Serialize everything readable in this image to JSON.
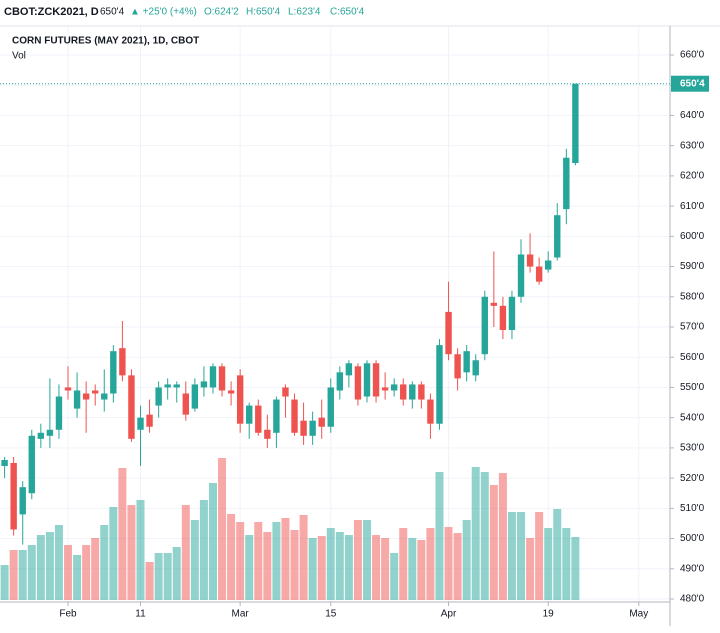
{
  "chart_data": {
    "type": "candlestick",
    "header": {
      "symbol": "CBOT:ZCK2021, D",
      "last": "650'4",
      "change": "▲ +25'0 (+4%)",
      "open": "O:624'2",
      "high": "H:650'4",
      "low": "L:623'4",
      "close": "C:650'4"
    },
    "title": "CORN FUTURES (MAY 2021), 1D, CBOT",
    "volume_label": "Vol",
    "up_color": "#26a69a",
    "down_color": "#ef5350",
    "open": [
      524,
      525,
      508,
      515,
      533,
      534,
      536,
      550,
      543,
      548,
      549,
      546,
      548,
      563,
      554,
      536,
      541,
      544,
      550,
      550,
      548,
      543,
      550,
      550,
      557,
      549,
      554,
      538,
      544,
      536,
      535,
      550,
      546,
      539,
      534,
      540,
      537,
      549,
      554,
      557,
      547,
      558,
      550,
      549,
      551,
      546,
      551,
      546,
      538,
      575,
      561,
      555,
      554,
      561,
      578,
      577,
      569,
      580,
      594,
      590,
      589,
      593,
      609,
      624.25
    ],
    "high": [
      527,
      527,
      519,
      536,
      538,
      553,
      551,
      557,
      555,
      552,
      551,
      556,
      564,
      572,
      556,
      544,
      546,
      552,
      553,
      552,
      552,
      553,
      557,
      558,
      558,
      552,
      556,
      545,
      546,
      541,
      547,
      551,
      548,
      545,
      542,
      546,
      553,
      557,
      559,
      558,
      559,
      559,
      555,
      553,
      553,
      552,
      552,
      548,
      566,
      585,
      563,
      564,
      561,
      582,
      595,
      580,
      582,
      599,
      601,
      593,
      595,
      611,
      629,
      650.5
    ],
    "low": [
      520,
      501,
      498,
      513,
      530,
      530,
      533,
      546,
      540,
      535,
      544,
      542,
      545,
      552,
      532,
      524,
      535,
      540,
      546,
      545,
      539,
      542,
      547,
      548,
      547,
      544,
      535,
      533,
      534,
      530,
      530,
      540,
      534,
      531,
      531,
      533,
      535,
      546,
      550,
      544,
      545,
      545,
      546,
      547,
      544,
      543,
      543,
      533,
      536,
      559,
      549,
      552,
      552,
      559,
      570,
      566,
      566,
      578,
      588,
      584,
      588,
      592,
      604,
      623.5
    ],
    "close": [
      526,
      503,
      517,
      534,
      535,
      536,
      547,
      549,
      549,
      546,
      548,
      548,
      562,
      554,
      533,
      540,
      537,
      550,
      551,
      551,
      541,
      551,
      552,
      557,
      549,
      548,
      538,
      544,
      535,
      533,
      546,
      547,
      535,
      534,
      539,
      537,
      550,
      555,
      558,
      546,
      558,
      547,
      549,
      551,
      546,
      551,
      546,
      538,
      564,
      561,
      553,
      562,
      559,
      580,
      577,
      569,
      580,
      594,
      590,
      585,
      592,
      607,
      626,
      650.5
    ],
    "volume": [
      35,
      50,
      50,
      55,
      65,
      68,
      75,
      55,
      45,
      55,
      62,
      75,
      93,
      132,
      95,
      100,
      38,
      47,
      47,
      53,
      95,
      80,
      100,
      117,
      142,
      86,
      78,
      65,
      78,
      68,
      78,
      82,
      70,
      85,
      62,
      64,
      72,
      68,
      65,
      80,
      80,
      65,
      62,
      47,
      72,
      62,
      60,
      72,
      128,
      73,
      67,
      80,
      133,
      128,
      115,
      127,
      88,
      88,
      62,
      88,
      72,
      91,
      72,
      63
    ],
    "xticks": [
      {
        "value": 7,
        "label": "Feb"
      },
      {
        "value": 15,
        "label": "11"
      },
      {
        "value": 26,
        "label": "Mar"
      },
      {
        "value": 36,
        "label": "15"
      },
      {
        "value": 49,
        "label": "Apr"
      },
      {
        "value": 60,
        "label": "19"
      },
      {
        "value": 70,
        "label": "May"
      }
    ],
    "ylim": [
      480,
      660
    ],
    "yticks": [
      {
        "value": 480,
        "label": "480'0"
      },
      {
        "value": 490,
        "label": "490'0"
      },
      {
        "value": 500,
        "label": "500'0"
      },
      {
        "value": 510,
        "label": "510'0"
      },
      {
        "value": 520,
        "label": "520'0"
      },
      {
        "value": 530,
        "label": "530'0"
      },
      {
        "value": 540,
        "label": "540'0"
      },
      {
        "value": 550,
        "label": "550'0"
      },
      {
        "value": 560,
        "label": "560'0"
      },
      {
        "value": 570,
        "label": "570'0"
      },
      {
        "value": 580,
        "label": "580'0"
      },
      {
        "value": 590,
        "label": "590'0"
      },
      {
        "value": 600,
        "label": "600'0"
      },
      {
        "value": 610,
        "label": "610'0"
      },
      {
        "value": 620,
        "label": "620'0"
      },
      {
        "value": 630,
        "label": "630'0"
      },
      {
        "value": 640,
        "label": "640'0"
      },
      {
        "value": 650,
        "label": "650'0"
      },
      {
        "value": 660,
        "label": "660'0"
      }
    ],
    "last_price": {
      "value": 650.5,
      "label": "650'4"
    },
    "grid": true
  }
}
